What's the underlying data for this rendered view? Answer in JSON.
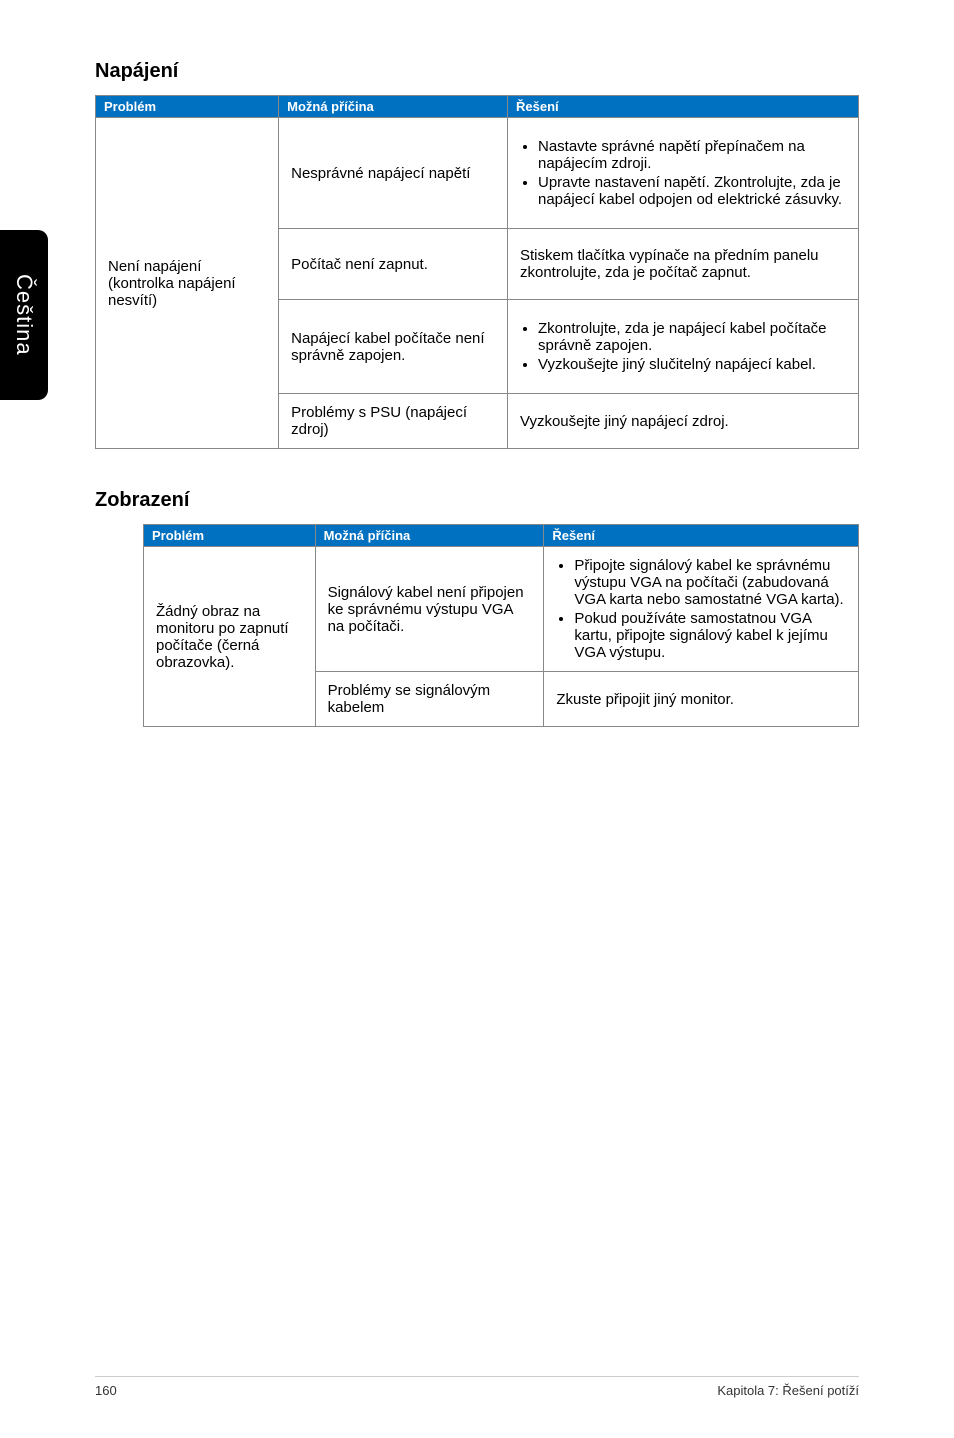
{
  "sideTab": "Čeština",
  "section1": {
    "title": "Napájení",
    "headers": [
      "Problém",
      "Možná příčina",
      "Řešení"
    ],
    "colWidths": [
      "24%",
      "30%",
      "46%"
    ],
    "problem": "Není napájení (kontrolka napájení nesvítí)",
    "rows": [
      {
        "cause": "Nesprávné napájecí napětí",
        "solutionItems": [
          "Nastavte správné napětí přepínačem na napájecím zdroji.",
          "Upravte nastavení napětí. Zkontrolujte, zda je napájecí kabel odpojen od elektrické zásuvky."
        ]
      },
      {
        "cause": "Počítač není zapnut.",
        "solutionText": "Stiskem tlačítka vypínače na předním panelu zkontrolujte, zda je počítač zapnut."
      },
      {
        "cause": "Napájecí kabel počítače není správně zapojen.",
        "solutionItems": [
          "Zkontrolujte, zda je napájecí kabel počítače správně zapojen.",
          "Vyzkoušejte jiný slučitelný napájecí kabel."
        ]
      },
      {
        "cause": "Problémy s PSU (napájecí zdroj)",
        "solutionText": "Vyzkoušejte jiný napájecí zdroj."
      }
    ]
  },
  "section2": {
    "title": "Zobrazení",
    "headers": [
      "Problém",
      "Možná příčina",
      "Řešení"
    ],
    "colWidths": [
      "24%",
      "32%",
      "44%"
    ],
    "problem": "Žádný obraz na monitoru po zapnutí počítače (černá obrazovka).",
    "rows": [
      {
        "cause": "Signálový kabel není připojen ke správnému výstupu VGA na počítači.",
        "solutionItems": [
          "Připojte signálový kabel ke správnému výstupu VGA na počítači (zabudovaná VGA karta nebo samostatné VGA karta).",
          "Pokud používáte samostatnou VGA kartu, připojte signálový kabel k jejímu VGA výstupu."
        ]
      },
      {
        "cause": "Problémy se signálovým kabelem",
        "solutionText": "Zkuste připojit jiný monitor."
      }
    ]
  },
  "footer": {
    "pageNum": "160",
    "chapter": "Kapitola 7: Řešení potíží"
  }
}
